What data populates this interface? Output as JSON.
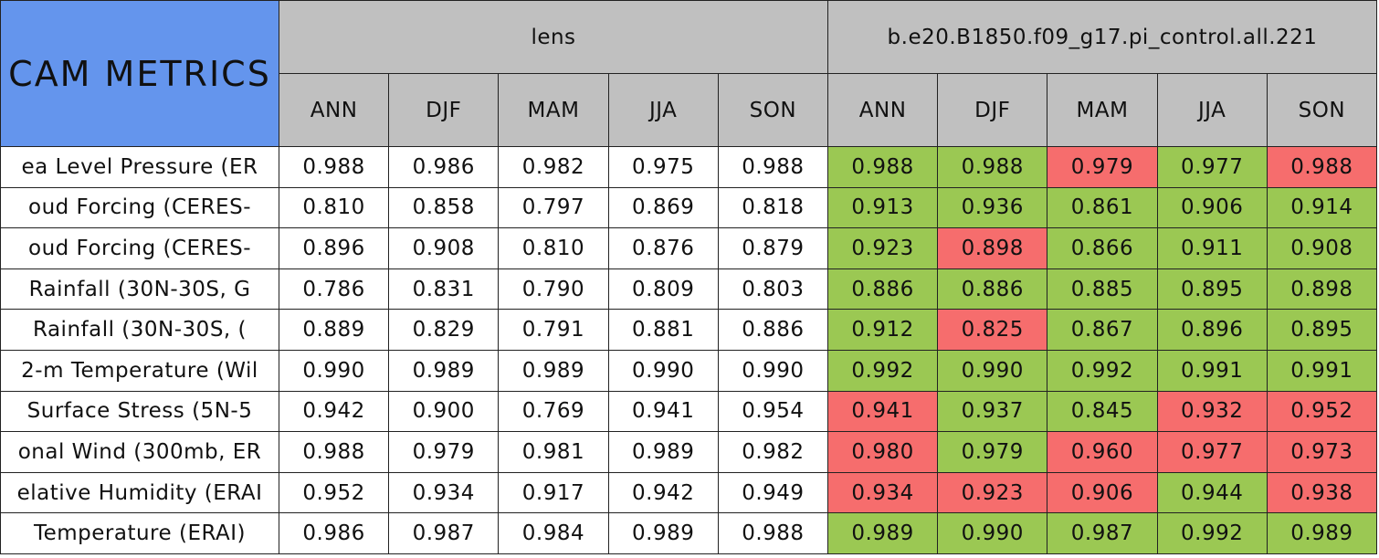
{
  "header": {
    "title": "CAM METRICS",
    "groups": [
      "lens",
      "b.e20.B1850.f09_g17.pi_control.all.221"
    ],
    "seasons": [
      [
        "ANN",
        "DJF",
        "MAM",
        "JJA",
        "SON"
      ],
      [
        "ANN",
        "DJF",
        "MAM",
        "JJA",
        "SON"
      ]
    ]
  },
  "table": {
    "rows": [
      {
        "label": "ea Level Pressure (ER",
        "values": [
          "0.988",
          "0.986",
          "0.982",
          "0.975",
          "0.988",
          "0.988",
          "0.988",
          "0.979",
          "0.977",
          "0.988"
        ],
        "colors": [
          "#ffffff",
          "#ffffff",
          "#ffffff",
          "#ffffff",
          "#ffffff",
          "#9bc853",
          "#9bc853",
          "#f66d6d",
          "#9bc853",
          "#f66d6d"
        ]
      },
      {
        "label": "oud Forcing (CERES-",
        "values": [
          "0.810",
          "0.858",
          "0.797",
          "0.869",
          "0.818",
          "0.913",
          "0.936",
          "0.861",
          "0.906",
          "0.914"
        ],
        "colors": [
          "#ffffff",
          "#ffffff",
          "#ffffff",
          "#ffffff",
          "#ffffff",
          "#9bc853",
          "#9bc853",
          "#9bc853",
          "#9bc853",
          "#9bc853"
        ]
      },
      {
        "label": "oud Forcing (CERES-",
        "values": [
          "0.896",
          "0.908",
          "0.810",
          "0.876",
          "0.879",
          "0.923",
          "0.898",
          "0.866",
          "0.911",
          "0.908"
        ],
        "colors": [
          "#ffffff",
          "#ffffff",
          "#ffffff",
          "#ffffff",
          "#ffffff",
          "#9bc853",
          "#f66d6d",
          "#9bc853",
          "#9bc853",
          "#9bc853"
        ]
      },
      {
        "label": "Rainfall (30N-30S, G",
        "values": [
          "0.786",
          "0.831",
          "0.790",
          "0.809",
          "0.803",
          "0.886",
          "0.886",
          "0.885",
          "0.895",
          "0.898"
        ],
        "colors": [
          "#ffffff",
          "#ffffff",
          "#ffffff",
          "#ffffff",
          "#ffffff",
          "#9bc853",
          "#9bc853",
          "#9bc853",
          "#9bc853",
          "#9bc853"
        ]
      },
      {
        "label": "Rainfall (30N-30S, (",
        "values": [
          "0.889",
          "0.829",
          "0.791",
          "0.881",
          "0.886",
          "0.912",
          "0.825",
          "0.867",
          "0.896",
          "0.895"
        ],
        "colors": [
          "#ffffff",
          "#ffffff",
          "#ffffff",
          "#ffffff",
          "#ffffff",
          "#9bc853",
          "#f66d6d",
          "#9bc853",
          "#9bc853",
          "#9bc853"
        ]
      },
      {
        "label": "2-m Temperature (Wil",
        "values": [
          "0.990",
          "0.989",
          "0.989",
          "0.990",
          "0.990",
          "0.992",
          "0.990",
          "0.992",
          "0.991",
          "0.991"
        ],
        "colors": [
          "#ffffff",
          "#ffffff",
          "#ffffff",
          "#ffffff",
          "#ffffff",
          "#9bc853",
          "#9bc853",
          "#9bc853",
          "#9bc853",
          "#9bc853"
        ]
      },
      {
        "label": "Surface Stress (5N-5",
        "values": [
          "0.942",
          "0.900",
          "0.769",
          "0.941",
          "0.954",
          "0.941",
          "0.937",
          "0.845",
          "0.932",
          "0.952"
        ],
        "colors": [
          "#ffffff",
          "#ffffff",
          "#ffffff",
          "#ffffff",
          "#ffffff",
          "#f66d6d",
          "#9bc853",
          "#9bc853",
          "#f66d6d",
          "#f66d6d"
        ]
      },
      {
        "label": "onal Wind (300mb, ER",
        "values": [
          "0.988",
          "0.979",
          "0.981",
          "0.989",
          "0.982",
          "0.980",
          "0.979",
          "0.960",
          "0.977",
          "0.973"
        ],
        "colors": [
          "#ffffff",
          "#ffffff",
          "#ffffff",
          "#ffffff",
          "#ffffff",
          "#f66d6d",
          "#9bc853",
          "#f66d6d",
          "#f66d6d",
          "#f66d6d"
        ]
      },
      {
        "label": "elative Humidity (ERAI",
        "values": [
          "0.952",
          "0.934",
          "0.917",
          "0.942",
          "0.949",
          "0.934",
          "0.923",
          "0.906",
          "0.944",
          "0.938"
        ],
        "colors": [
          "#ffffff",
          "#ffffff",
          "#ffffff",
          "#ffffff",
          "#ffffff",
          "#f66d6d",
          "#f66d6d",
          "#f66d6d",
          "#9bc853",
          "#f66d6d"
        ]
      },
      {
        "label": "Temperature (ERAI)",
        "values": [
          "0.986",
          "0.987",
          "0.984",
          "0.989",
          "0.988",
          "0.989",
          "0.990",
          "0.987",
          "0.992",
          "0.989"
        ],
        "colors": [
          "#ffffff",
          "#ffffff",
          "#ffffff",
          "#ffffff",
          "#ffffff",
          "#9bc853",
          "#9bc853",
          "#9bc853",
          "#9bc853",
          "#9bc853"
        ]
      }
    ]
  }
}
